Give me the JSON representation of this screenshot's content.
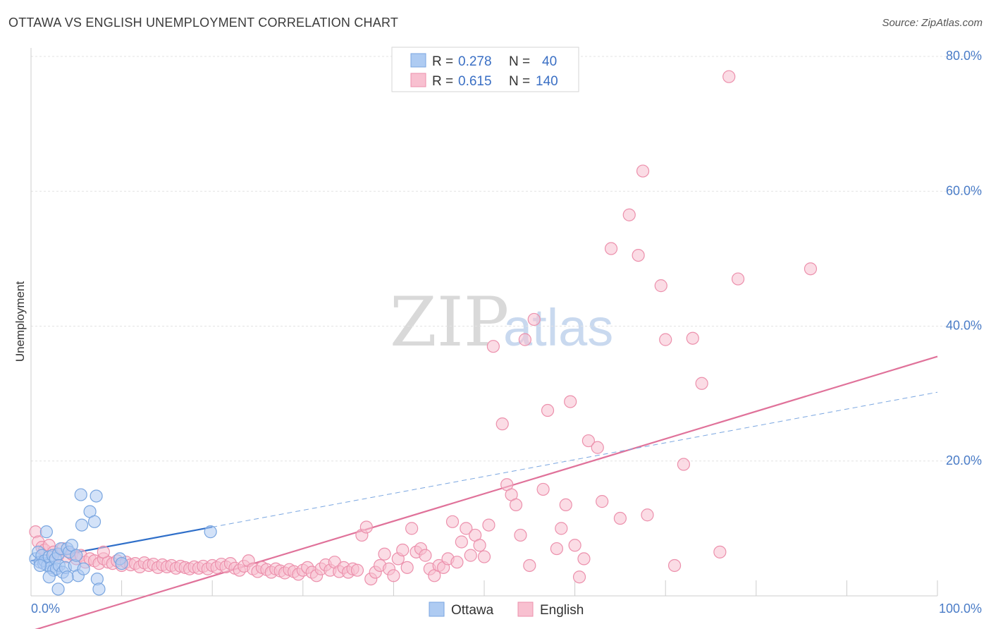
{
  "header": {
    "title": "OTTAWA VS ENGLISH UNEMPLOYMENT CORRELATION CHART",
    "source": "Source: ZipAtlas.com"
  },
  "watermark": {
    "zip": "ZIP",
    "atlas": "atlas"
  },
  "legend": {
    "rows": [
      {
        "r_label": "R =",
        "r_value": "0.278",
        "n_label": "N =",
        "n_value": "40",
        "color": "#aecbf2",
        "stroke": "#7aa6e0"
      },
      {
        "r_label": "R =",
        "r_value": "0.615",
        "n_label": "N =",
        "n_value": "140",
        "color": "#f8c0d0",
        "stroke": "#ec90ac"
      }
    ]
  },
  "bottom_legend": {
    "ottawa": "Ottawa",
    "english": "English"
  },
  "chart_data": {
    "type": "scatter",
    "ylabel": "Unemployment",
    "xlim": [
      0,
      100
    ],
    "ylim": [
      0,
      80
    ],
    "x_tick_labels": {
      "left": "0.0%",
      "right": "100.0%"
    },
    "y_ticks": [
      {
        "value": 20,
        "label": "20.0%"
      },
      {
        "value": 40,
        "label": "40.0%"
      },
      {
        "value": 60,
        "label": "60.0%"
      },
      {
        "value": 80,
        "label": "80.0%"
      }
    ],
    "grid": true,
    "series": [
      {
        "name": "Ottawa",
        "color": "#7aa6e0",
        "fill": "#aecbf2",
        "points": [
          [
            0.5,
            5.5
          ],
          [
            0.8,
            6.5
          ],
          [
            1.0,
            5.0
          ],
          [
            1.2,
            6.0
          ],
          [
            1.4,
            4.8
          ],
          [
            1.5,
            5.2
          ],
          [
            1.7,
            9.5
          ],
          [
            1.8,
            4.5
          ],
          [
            2.0,
            5.8
          ],
          [
            2.2,
            4.2
          ],
          [
            2.4,
            6.0
          ],
          [
            2.5,
            3.8
          ],
          [
            2.7,
            5.5
          ],
          [
            2.8,
            4.0
          ],
          [
            3.0,
            6.2
          ],
          [
            3.1,
            4.5
          ],
          [
            3.3,
            7.0
          ],
          [
            3.5,
            3.5
          ],
          [
            3.8,
            4.2
          ],
          [
            4.0,
            7.0
          ],
          [
            4.2,
            6.5
          ],
          [
            4.5,
            7.5
          ],
          [
            4.8,
            4.5
          ],
          [
            5.0,
            6.0
          ],
          [
            5.2,
            3.0
          ],
          [
            5.5,
            15.0
          ],
          [
            5.6,
            10.5
          ],
          [
            5.8,
            4.0
          ],
          [
            6.5,
            12.5
          ],
          [
            7.0,
            11.0
          ],
          [
            7.2,
            14.8
          ],
          [
            7.3,
            2.5
          ],
          [
            7.5,
            1.0
          ],
          [
            3.0,
            1.0
          ],
          [
            2.0,
            2.8
          ],
          [
            1.0,
            4.5
          ],
          [
            9.8,
            5.5
          ],
          [
            10.0,
            4.8
          ],
          [
            19.8,
            9.5
          ],
          [
            4.0,
            2.8
          ]
        ],
        "trend": {
          "x0": 0,
          "y0": 5.2,
          "x1": 20,
          "y1": 10.2,
          "dashed_to_x": 100,
          "dashed_to_y": 30.2
        }
      },
      {
        "name": "English",
        "color": "#ec90ac",
        "fill": "#f8c0d0",
        "points": [
          [
            0.5,
            9.5
          ],
          [
            0.8,
            8.0
          ],
          [
            1.2,
            7.2
          ],
          [
            1.5,
            6.8
          ],
          [
            2.0,
            7.5
          ],
          [
            2.5,
            6.5
          ],
          [
            3.0,
            6.0
          ],
          [
            3.5,
            7.0
          ],
          [
            4.0,
            5.8
          ],
          [
            4.5,
            6.2
          ],
          [
            5.0,
            5.5
          ],
          [
            5.5,
            6.0
          ],
          [
            6.0,
            5.0
          ],
          [
            6.5,
            5.5
          ],
          [
            7.0,
            5.2
          ],
          [
            7.5,
            4.8
          ],
          [
            8.0,
            5.5
          ],
          [
            8.5,
            5.0
          ],
          [
            9.0,
            4.8
          ],
          [
            9.5,
            5.2
          ],
          [
            10.0,
            4.5
          ],
          [
            10.5,
            5.0
          ],
          [
            11.0,
            4.6
          ],
          [
            11.5,
            4.8
          ],
          [
            12.0,
            4.3
          ],
          [
            12.5,
            4.9
          ],
          [
            13.0,
            4.5
          ],
          [
            13.5,
            4.7
          ],
          [
            14.0,
            4.2
          ],
          [
            14.5,
            4.6
          ],
          [
            15.0,
            4.3
          ],
          [
            15.5,
            4.5
          ],
          [
            16.0,
            4.1
          ],
          [
            16.5,
            4.4
          ],
          [
            17.0,
            4.2
          ],
          [
            17.5,
            4.0
          ],
          [
            18.0,
            4.3
          ],
          [
            18.5,
            4.1
          ],
          [
            19.0,
            4.4
          ],
          [
            19.5,
            4.0
          ],
          [
            20.0,
            4.5
          ],
          [
            20.5,
            4.2
          ],
          [
            21.0,
            4.7
          ],
          [
            21.5,
            4.3
          ],
          [
            22.0,
            4.8
          ],
          [
            22.5,
            4.1
          ],
          [
            23.0,
            3.8
          ],
          [
            23.5,
            4.4
          ],
          [
            24.0,
            5.2
          ],
          [
            24.5,
            4.0
          ],
          [
            25.0,
            3.6
          ],
          [
            25.5,
            4.2
          ],
          [
            26.0,
            3.9
          ],
          [
            26.5,
            3.5
          ],
          [
            27.0,
            4.0
          ],
          [
            27.5,
            3.7
          ],
          [
            28.0,
            3.4
          ],
          [
            28.5,
            3.9
          ],
          [
            29.0,
            3.6
          ],
          [
            29.5,
            3.2
          ],
          [
            30.0,
            3.8
          ],
          [
            30.5,
            4.2
          ],
          [
            31.0,
            3.5
          ],
          [
            31.5,
            3.0
          ],
          [
            32.0,
            4.0
          ],
          [
            32.5,
            4.6
          ],
          [
            33.0,
            3.8
          ],
          [
            33.5,
            5.0
          ],
          [
            34.0,
            3.6
          ],
          [
            34.5,
            4.2
          ],
          [
            35.0,
            3.5
          ],
          [
            35.5,
            4.0
          ],
          [
            36.0,
            3.8
          ],
          [
            36.5,
            9.0
          ],
          [
            37.0,
            10.2
          ],
          [
            37.5,
            2.5
          ],
          [
            38.0,
            3.5
          ],
          [
            38.5,
            4.5
          ],
          [
            39.0,
            6.2
          ],
          [
            39.5,
            4.0
          ],
          [
            40.0,
            3.0
          ],
          [
            40.5,
            5.5
          ],
          [
            41.0,
            6.8
          ],
          [
            41.5,
            4.2
          ],
          [
            42.0,
            10.0
          ],
          [
            42.5,
            6.5
          ],
          [
            43.0,
            7.0
          ],
          [
            43.5,
            6.0
          ],
          [
            44.0,
            4.0
          ],
          [
            44.5,
            3.0
          ],
          [
            45.0,
            4.5
          ],
          [
            45.5,
            4.2
          ],
          [
            46.0,
            5.5
          ],
          [
            46.5,
            11.0
          ],
          [
            47.0,
            5.0
          ],
          [
            47.5,
            8.0
          ],
          [
            48.0,
            10.0
          ],
          [
            48.5,
            6.0
          ],
          [
            49.0,
            9.0
          ],
          [
            49.5,
            7.5
          ],
          [
            50.0,
            5.8
          ],
          [
            50.5,
            10.5
          ],
          [
            51.0,
            37.0
          ],
          [
            52.0,
            25.5
          ],
          [
            52.5,
            16.5
          ],
          [
            53.0,
            15.0
          ],
          [
            53.5,
            13.5
          ],
          [
            54.0,
            9.0
          ],
          [
            54.5,
            38.0
          ],
          [
            55.0,
            4.5
          ],
          [
            55.5,
            41.0
          ],
          [
            56.5,
            15.8
          ],
          [
            57.0,
            27.5
          ],
          [
            58.0,
            7.0
          ],
          [
            58.5,
            10.0
          ],
          [
            59.0,
            13.5
          ],
          [
            59.5,
            28.8
          ],
          [
            60.0,
            7.5
          ],
          [
            60.5,
            2.8
          ],
          [
            61.0,
            5.5
          ],
          [
            61.5,
            23.0
          ],
          [
            62.5,
            22.0
          ],
          [
            63.0,
            14.0
          ],
          [
            64.0,
            51.5
          ],
          [
            65.0,
            11.5
          ],
          [
            66.0,
            56.5
          ],
          [
            67.0,
            50.5
          ],
          [
            67.5,
            63.0
          ],
          [
            68.0,
            12.0
          ],
          [
            69.5,
            46.0
          ],
          [
            70.0,
            38.0
          ],
          [
            71.0,
            4.5
          ],
          [
            72.0,
            19.5
          ],
          [
            73.0,
            38.2
          ],
          [
            74.0,
            31.5
          ],
          [
            76.0,
            6.5
          ],
          [
            77.0,
            77.0
          ],
          [
            78.0,
            47.0
          ],
          [
            86.0,
            48.5
          ],
          [
            8.0,
            6.5
          ]
        ],
        "trend": {
          "x0": 0,
          "y0": -5.2,
          "x1": 100,
          "y1": 35.5
        }
      }
    ]
  }
}
